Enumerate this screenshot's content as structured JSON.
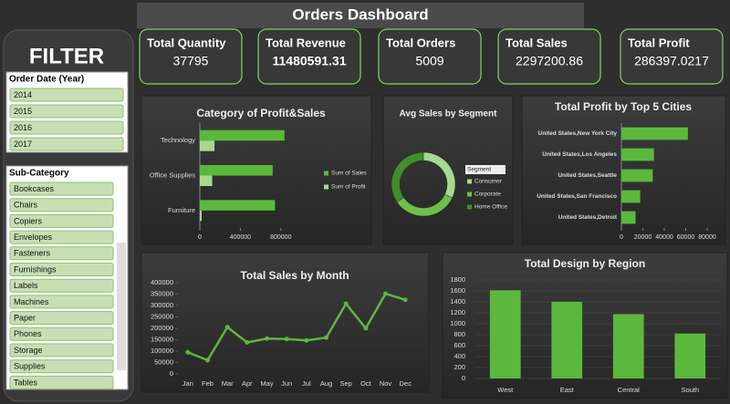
{
  "header": {
    "title": "Orders Dashboard"
  },
  "kpis": [
    {
      "label": "Total Quantity",
      "value": 37795
    },
    {
      "label": "Total Revenue",
      "value": 11480591.31
    },
    {
      "label": "Total Orders",
      "value": 5009
    },
    {
      "label": "Total Sales",
      "value": 2297200.86
    },
    {
      "label": "Total Profit",
      "value": 286397.0217
    }
  ],
  "filters": {
    "title": "FILTER",
    "slicers": [
      {
        "title": "Order Date (Year)",
        "items": [
          "2014",
          "2015",
          "2016",
          "2017"
        ]
      },
      {
        "title": "Sub-Category",
        "items": [
          "Bookcases",
          "Chairs",
          "Copiers",
          "Envelopes",
          "Fasteners",
          "Furnishings",
          "Labels",
          "Machines",
          "Paper",
          "Phones",
          "Storage",
          "Supplies",
          "Tables"
        ]
      }
    ]
  },
  "chart_data": [
    {
      "type": "barh",
      "title": "Category of Profit&Sales",
      "categories": [
        "Technology",
        "Office Supplies",
        "Furniture"
      ],
      "series": [
        {
          "name": "Sum of Sales",
          "color": "#5cb83c",
          "values": [
            836000,
            719000,
            742000
          ]
        },
        {
          "name": "Sum of Profit",
          "color": "#a6d98f",
          "values": [
            145000,
            122000,
            18000
          ]
        }
      ],
      "xlim": [
        0,
        1000000
      ],
      "xticks": [
        0,
        400000,
        800000
      ],
      "legend": "right"
    },
    {
      "type": "donut",
      "title": "Avg Sales by Segment",
      "legend_title": "Segment",
      "categories": [
        "Consumer",
        "Corporate",
        "Home Office"
      ],
      "values": [
        224,
        234,
        241
      ],
      "colors": [
        "#a6d98f",
        "#6cc04a",
        "#3f8f2a"
      ],
      "legend": "right"
    },
    {
      "type": "barh",
      "title": "Total Profit by Top 5 Cities",
      "categories": [
        "United States,New York City",
        "United States,Los Angeles",
        "United States,Seattle",
        "United States,San Francisco",
        "United States,Detroit"
      ],
      "values": [
        62000,
        30400,
        29200,
        17500,
        13200
      ],
      "color": "#5cb83c",
      "xlim": [
        0,
        80000
      ],
      "xticks": [
        0,
        20000,
        40000,
        60000,
        80000
      ]
    },
    {
      "type": "line",
      "title": "Total Sales by Month",
      "categories": [
        "Jan",
        "Feb",
        "Mar",
        "Apr",
        "May",
        "Jun",
        "Jul",
        "Aug",
        "Sep",
        "Oct",
        "Nov",
        "Dec"
      ],
      "values": [
        95000,
        60000,
        205000,
        138000,
        155000,
        153000,
        147000,
        159000,
        308000,
        200000,
        352000,
        325000
      ],
      "color": "#5cb83c",
      "ylim": [
        0,
        400000
      ],
      "yticks": [
        0,
        50000,
        100000,
        150000,
        200000,
        250000,
        300000,
        350000,
        400000
      ]
    },
    {
      "type": "bar",
      "title": "Total Design by Region",
      "categories": [
        "West",
        "East",
        "Central",
        "South"
      ],
      "values": [
        1611,
        1401,
        1175,
        822
      ],
      "color": "#5cb83c",
      "ylim": [
        0,
        1800
      ],
      "yticks": [
        0,
        200,
        400,
        600,
        800,
        1000,
        1200,
        1400,
        1600,
        1800
      ],
      "grid": true
    }
  ]
}
